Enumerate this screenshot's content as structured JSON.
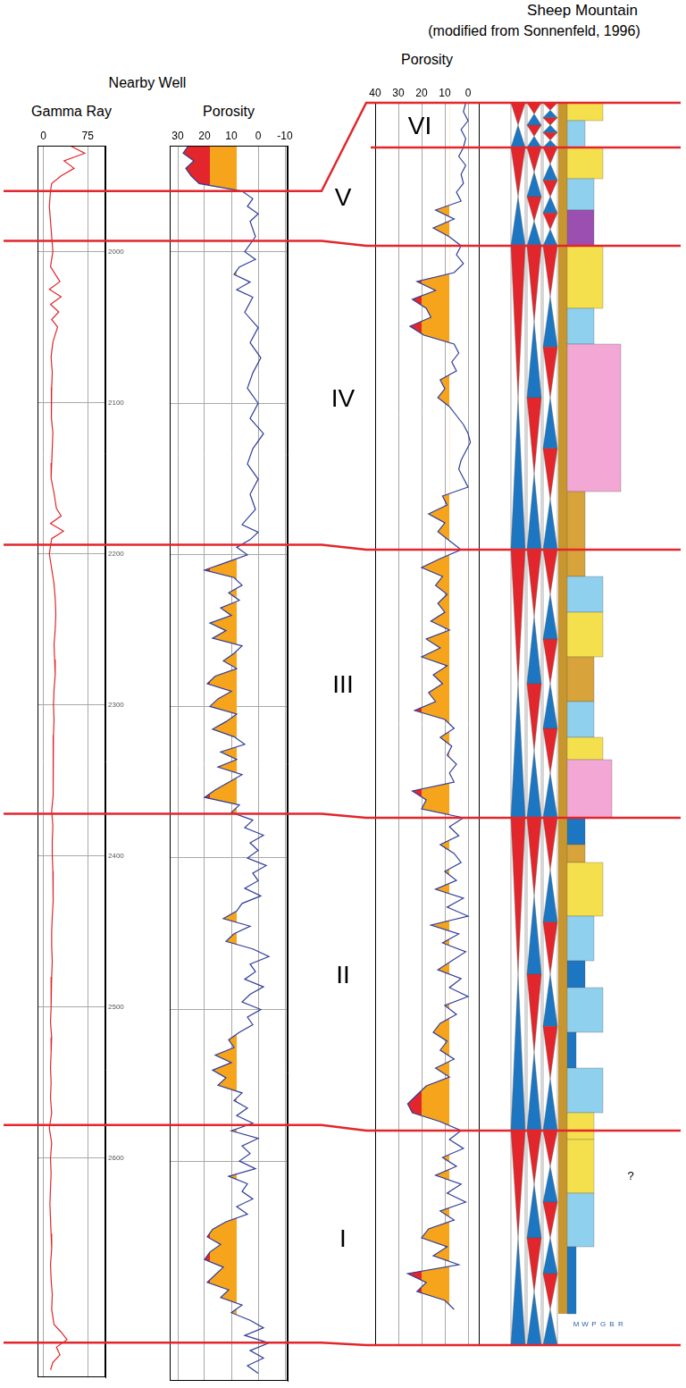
{
  "headings": {
    "nearby_well": "Nearby Well",
    "outcrop": "Sheep Mountain",
    "source": "(modified from Sonnenfeld, 1996)"
  },
  "chart_data": [
    {
      "type": "line",
      "title": "Gamma Ray",
      "orientation": "horizontal",
      "color": "#e0262a",
      "grid": true,
      "xlim": [
        -10,
        105
      ],
      "xticks": [
        0,
        75
      ],
      "ylim": [
        2745,
        1930
      ],
      "yticks": [
        2000,
        2100,
        2200,
        2300,
        2400,
        2500,
        2600
      ],
      "y": [
        1930,
        1935,
        1940,
        1945,
        1950,
        1955,
        1960,
        1970,
        1980,
        1990,
        2000,
        2010,
        2020,
        2025,
        2030,
        2035,
        2040,
        2045,
        2050,
        2060,
        2070,
        2080,
        2090,
        2100,
        2110,
        2120,
        2130,
        2140,
        2150,
        2160,
        2170,
        2175,
        2180,
        2185,
        2190,
        2200,
        2210,
        2220,
        2230,
        2240,
        2250,
        2260,
        2270,
        2280,
        2290,
        2300,
        2310,
        2320,
        2330,
        2340,
        2350,
        2360,
        2370,
        2380,
        2390,
        2400,
        2410,
        2420,
        2430,
        2440,
        2450,
        2460,
        2470,
        2480,
        2490,
        2500,
        2510,
        2520,
        2530,
        2540,
        2550,
        2560,
        2570,
        2580,
        2590,
        2600,
        2610,
        2620,
        2630,
        2640,
        2650,
        2660,
        2670,
        2680,
        2690,
        2700,
        2710,
        2715,
        2720,
        2725,
        2730,
        2735,
        2740
      ],
      "values": [
        45,
        70,
        35,
        52,
        30,
        14,
        12,
        10,
        12,
        14,
        16,
        12,
        28,
        10,
        30,
        12,
        26,
        14,
        24,
        16,
        13,
        15,
        14,
        13,
        14,
        16,
        15,
        14,
        13,
        18,
        22,
        30,
        12,
        34,
        14,
        10,
        14,
        18,
        20,
        21,
        20,
        18,
        19,
        20,
        18,
        17,
        18,
        17,
        17,
        16,
        16,
        17,
        14,
        16,
        15,
        15,
        16,
        17,
        16,
        15,
        14,
        14,
        15,
        14,
        13,
        13,
        12,
        14,
        13,
        12,
        13,
        12,
        14,
        10,
        14,
        12,
        13,
        12,
        11,
        12,
        13,
        14,
        12,
        13,
        15,
        14,
        18,
        30,
        40,
        22,
        28,
        16,
        12
      ]
    },
    {
      "type": "line",
      "title": "Porosity",
      "orientation": "horizontal",
      "color": "#2f3d9a",
      "grid": true,
      "tick_labels": "x",
      "xlim": [
        33,
        -11
      ],
      "xticks": [
        30,
        20,
        10,
        0,
        -10
      ],
      "ylim": [
        2745,
        1930
      ],
      "yticks": [
        2000,
        2100,
        2200,
        2300,
        2400,
        2500,
        2600
      ],
      "fill": [
        {
          "above": 8,
          "color": "#f7a41d"
        },
        {
          "above": 18,
          "color": "#e3262b"
        }
      ],
      "y": [
        1930,
        1935,
        1940,
        1945,
        1950,
        1955,
        1960,
        1965,
        1970,
        1975,
        1980,
        1990,
        2000,
        2005,
        2010,
        2015,
        2020,
        2025,
        2030,
        2040,
        2050,
        2060,
        2070,
        2080,
        2090,
        2100,
        2110,
        2120,
        2130,
        2140,
        2150,
        2160,
        2170,
        2180,
        2185,
        2190,
        2195,
        2200,
        2205,
        2210,
        2215,
        2220,
        2225,
        2230,
        2235,
        2240,
        2245,
        2250,
        2255,
        2260,
        2265,
        2270,
        2275,
        2280,
        2285,
        2290,
        2295,
        2300,
        2305,
        2310,
        2315,
        2320,
        2325,
        2330,
        2335,
        2340,
        2345,
        2350,
        2355,
        2360,
        2365,
        2370,
        2375,
        2380,
        2385,
        2390,
        2395,
        2400,
        2405,
        2410,
        2415,
        2420,
        2425,
        2430,
        2435,
        2440,
        2445,
        2450,
        2455,
        2460,
        2465,
        2470,
        2475,
        2480,
        2485,
        2490,
        2495,
        2500,
        2505,
        2510,
        2515,
        2520,
        2525,
        2530,
        2535,
        2540,
        2545,
        2550,
        2555,
        2560,
        2565,
        2570,
        2575,
        2580,
        2585,
        2590,
        2595,
        2600,
        2605,
        2610,
        2615,
        2620,
        2625,
        2630,
        2635,
        2640,
        2645,
        2650,
        2655,
        2660,
        2665,
        2670,
        2675,
        2680,
        2685,
        2690,
        2695,
        2700,
        2705,
        2710,
        2715,
        2720,
        2725,
        2730,
        2735,
        2740
      ],
      "values": [
        26,
        28,
        24,
        27,
        25,
        22,
        6,
        2,
        4,
        0,
        3,
        1,
        5,
        1,
        7,
        9,
        3,
        8,
        2,
        5,
        0,
        3,
        -1,
        2,
        4,
        0,
        3,
        -2,
        2,
        4,
        0,
        3,
        1,
        6,
        0,
        3,
        8,
        4,
        12,
        20,
        9,
        6,
        11,
        7,
        14,
        10,
        18,
        12,
        17,
        6,
        9,
        13,
        8,
        16,
        19,
        10,
        15,
        18,
        8,
        12,
        17,
        9,
        5,
        14,
        8,
        15,
        6,
        11,
        16,
        20,
        7,
        10,
        2,
        5,
        -2,
        3,
        0,
        4,
        -3,
        2,
        0,
        5,
        -1,
        6,
        8,
        13,
        3,
        9,
        12,
        2,
        -4,
        3,
        1,
        5,
        -2,
        3,
        6,
        -1,
        4,
        2,
        7,
        11,
        9,
        16,
        10,
        17,
        12,
        15,
        6,
        9,
        4,
        8,
        2,
        10,
        0,
        6,
        3,
        7,
        1,
        11,
        4,
        6,
        2,
        8,
        4,
        12,
        17,
        19,
        14,
        18,
        20,
        13,
        16,
        19,
        11,
        14,
        6,
        10,
        3,
        -2,
        5,
        -4,
        3,
        -2,
        4,
        0
      ]
    },
    {
      "type": "line",
      "title": "Porosity",
      "orientation": "horizontal",
      "color": "#2f3d9a",
      "grid": true,
      "tick_labels": "x",
      "xlim": [
        40,
        -5
      ],
      "xticks": [
        40,
        30,
        20,
        10,
        0
      ],
      "fill": [
        {
          "above": 8,
          "color": "#f7a41d"
        },
        {
          "above": 20,
          "color": "#e3262b"
        }
      ],
      "categories": [
        null,
        null,
        null,
        null,
        null,
        null,
        null,
        null,
        null,
        null,
        null,
        null,
        null,
        null,
        null,
        null,
        null,
        null,
        null,
        null,
        null,
        null,
        null,
        null,
        null,
        null,
        null,
        null,
        null,
        null,
        null,
        null,
        null,
        null,
        null,
        null,
        null,
        null,
        null,
        null,
        null,
        null,
        null,
        null,
        null,
        null,
        null,
        null,
        null,
        null,
        null,
        null,
        null,
        null,
        null,
        null,
        null,
        null,
        null,
        null,
        null,
        null,
        null,
        null,
        null,
        null,
        null,
        null,
        null,
        null,
        null,
        null,
        null,
        null,
        null,
        null,
        null,
        null,
        null,
        null,
        null,
        null,
        null,
        null,
        null,
        null,
        null,
        null,
        null,
        null,
        null,
        null,
        null,
        null,
        null,
        null,
        null,
        null,
        null,
        null,
        null,
        null,
        null,
        null,
        null,
        null,
        null,
        null,
        null,
        null,
        null,
        null,
        null,
        null,
        null,
        null,
        null,
        null,
        null,
        null,
        null,
        null,
        null,
        null,
        null,
        null,
        null,
        null,
        null,
        null,
        null,
        null,
        null,
        null,
        null,
        null,
        null,
        null,
        null,
        null
      ],
      "values": [
        1,
        2,
        0,
        3,
        1,
        2,
        4,
        1,
        3,
        2,
        5,
        3,
        14,
        6,
        15,
        8,
        3,
        5,
        2,
        6,
        22,
        14,
        24,
        18,
        16,
        25,
        19,
        6,
        4,
        7,
        5,
        12,
        10,
        13,
        8,
        5,
        2,
        0,
        -1,
        1,
        3,
        4,
        2,
        0,
        11,
        9,
        17,
        10,
        13,
        8,
        3,
        12,
        20,
        11,
        14,
        9,
        13,
        10,
        16,
        8,
        18,
        12,
        20,
        9,
        15,
        11,
        17,
        14,
        23,
        10,
        6,
        12,
        7,
        9,
        5,
        8,
        6,
        24,
        18,
        20,
        2,
        8,
        4,
        12,
        6,
        3,
        10,
        5,
        14,
        2,
        9,
        0,
        16,
        4,
        11,
        1,
        7,
        13,
        3,
        8,
        0,
        10,
        5,
        12,
        15,
        9,
        12,
        6,
        14,
        8,
        18,
        22,
        26,
        24,
        12,
        3,
        8,
        2,
        11,
        5,
        14,
        3,
        9,
        1,
        12,
        6,
        17,
        20,
        9,
        15,
        4,
        26,
        18,
        22,
        10,
        6,
        null,
        null,
        null,
        null
      ]
    }
  ],
  "sequences": [
    "VI",
    "V",
    "IV",
    "III",
    "II",
    "I"
  ],
  "correlation_lines": [
    {
      "well_depth": 1960,
      "sm_position": 0
    },
    {
      "well_depth": null,
      "sm_position": 5
    },
    {
      "well_depth": 1993,
      "sm_position": 16
    },
    {
      "well_depth": 2194,
      "sm_position": 50
    },
    {
      "well_depth": 2372,
      "sm_position": 80
    },
    {
      "well_depth": 2578,
      "sm_position": 115
    },
    {
      "well_depth": 2722,
      "sm_position": 139
    }
  ],
  "texture_scale": [
    "M",
    "W",
    "P",
    "G",
    "B",
    "R"
  ],
  "lithology": [
    {
      "top": 0,
      "base": 2,
      "color": "#f4e04d",
      "texture": "G"
    },
    {
      "top": 2,
      "base": 5,
      "color": "#8fd0ef",
      "texture": "W"
    },
    {
      "top": 5,
      "base": 8.5,
      "color": "#f4e04d",
      "texture": "G"
    },
    {
      "top": 8.5,
      "base": 12,
      "color": "#8fd0ef",
      "texture": "P"
    },
    {
      "top": 12,
      "base": 16,
      "color": "#9b4fb0",
      "texture": "P"
    },
    {
      "top": 16,
      "base": 23,
      "color": "#f4e04d",
      "texture": "G"
    },
    {
      "top": 23,
      "base": 27,
      "color": "#8fd0ef",
      "texture": "P"
    },
    {
      "top": 27,
      "base": 43.5,
      "color": "#f2a7d4",
      "texture": "R"
    },
    {
      "top": 43.5,
      "base": 50,
      "color": "#d7a33a",
      "texture": "W"
    },
    {
      "top": 50,
      "base": 53,
      "color": "#d7a33a",
      "texture": "W"
    },
    {
      "top": 53,
      "base": 57,
      "color": "#8fd0ef",
      "texture": "G"
    },
    {
      "top": 57,
      "base": 62,
      "color": "#f4e04d",
      "texture": "G"
    },
    {
      "top": 62,
      "base": 67,
      "color": "#d7a33a",
      "texture": "P"
    },
    {
      "top": 67,
      "base": 71,
      "color": "#8fd0ef",
      "texture": "P"
    },
    {
      "top": 71,
      "base": 73.5,
      "color": "#f4e04d",
      "texture": "G"
    },
    {
      "top": 73.5,
      "base": 80,
      "color": "#f2a7d4",
      "texture": "B"
    },
    {
      "top": 80,
      "base": 83,
      "color": "#1d76c2",
      "texture": "W"
    },
    {
      "top": 83,
      "base": 85,
      "color": "#d7a33a",
      "texture": "W"
    },
    {
      "top": 85,
      "base": 91,
      "color": "#f4e04d",
      "texture": "G"
    },
    {
      "top": 91,
      "base": 96,
      "color": "#8fd0ef",
      "texture": "P"
    },
    {
      "top": 96,
      "base": 99,
      "color": "#1d76c2",
      "texture": "W"
    },
    {
      "top": 99,
      "base": 104,
      "color": "#8fd0ef",
      "texture": "G"
    },
    {
      "top": 104,
      "base": 108,
      "color": "#1d76c2",
      "texture": "M"
    },
    {
      "top": 108,
      "base": 113,
      "color": "#8fd0ef",
      "texture": "G"
    },
    {
      "top": 113,
      "base": 116,
      "color": "#f4e04d",
      "texture": "P"
    },
    {
      "top": 116,
      "base": 122,
      "color": "#f4e04d",
      "texture": "P"
    },
    {
      "top": 122,
      "base": 128,
      "color": "#8fd0ef",
      "texture": "P"
    },
    {
      "top": 128,
      "base": 135.5,
      "color": "#1d76c2",
      "texture": "M"
    }
  ],
  "annotation": {
    "text": "?",
    "sm_position": 120
  }
}
